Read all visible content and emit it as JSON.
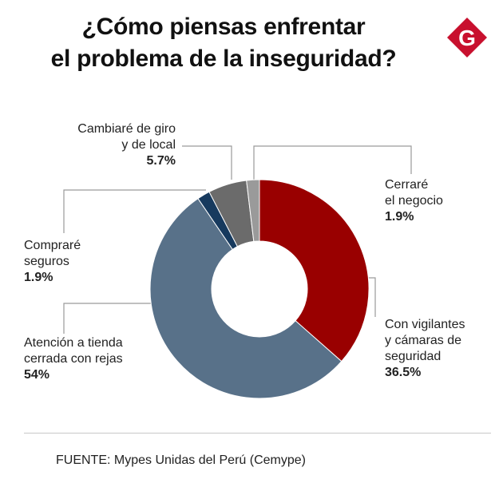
{
  "header": {
    "title_line1": "¿Cómo piensas enfrentar",
    "title_line2": "el problema de la inseguridad?",
    "logo_letter": "G",
    "logo_color": "#c8102e"
  },
  "chart_data": {
    "type": "pie",
    "donut": true,
    "title": "¿Cómo piensas enfrentar el problema de la inseguridad?",
    "slices": [
      {
        "label": "Con vigilantes y cámaras de seguridad",
        "value": 36.5,
        "display": "36.5%",
        "color": "#990000"
      },
      {
        "label": "Atención a tienda cerrada con rejas",
        "value": 54,
        "display": "54%",
        "color": "#587189"
      },
      {
        "label": "Compraré seguros",
        "value": 1.9,
        "display": "1.9%",
        "color": "#173a5e"
      },
      {
        "label": "Cambiaré de giro y de local",
        "value": 5.7,
        "display": "5.7%",
        "color": "#6b6b6b"
      },
      {
        "label": "Cerraré el negocio",
        "value": 1.9,
        "display": "1.9%",
        "color": "#9a9a9a"
      }
    ]
  },
  "labels": {
    "vigilantes": {
      "line1": "Con vigilantes",
      "line2": "y cámaras de",
      "line3": "seguridad",
      "pct": "36.5%"
    },
    "atencion": {
      "line1": "Atención a tienda",
      "line2": "cerrada con rejas",
      "pct": "54%"
    },
    "seguros": {
      "line1": "Compraré",
      "line2": "seguros",
      "pct": "1.9%"
    },
    "giro": {
      "line1": "Cambiaré de giro",
      "line2": "y de local",
      "pct": "5.7%"
    },
    "cerrare": {
      "line1": "Cerraré",
      "line2": "el negocio",
      "pct": "1.9%"
    }
  },
  "source": "FUENTE: Mypes Unidas del Perú (Cemype)"
}
